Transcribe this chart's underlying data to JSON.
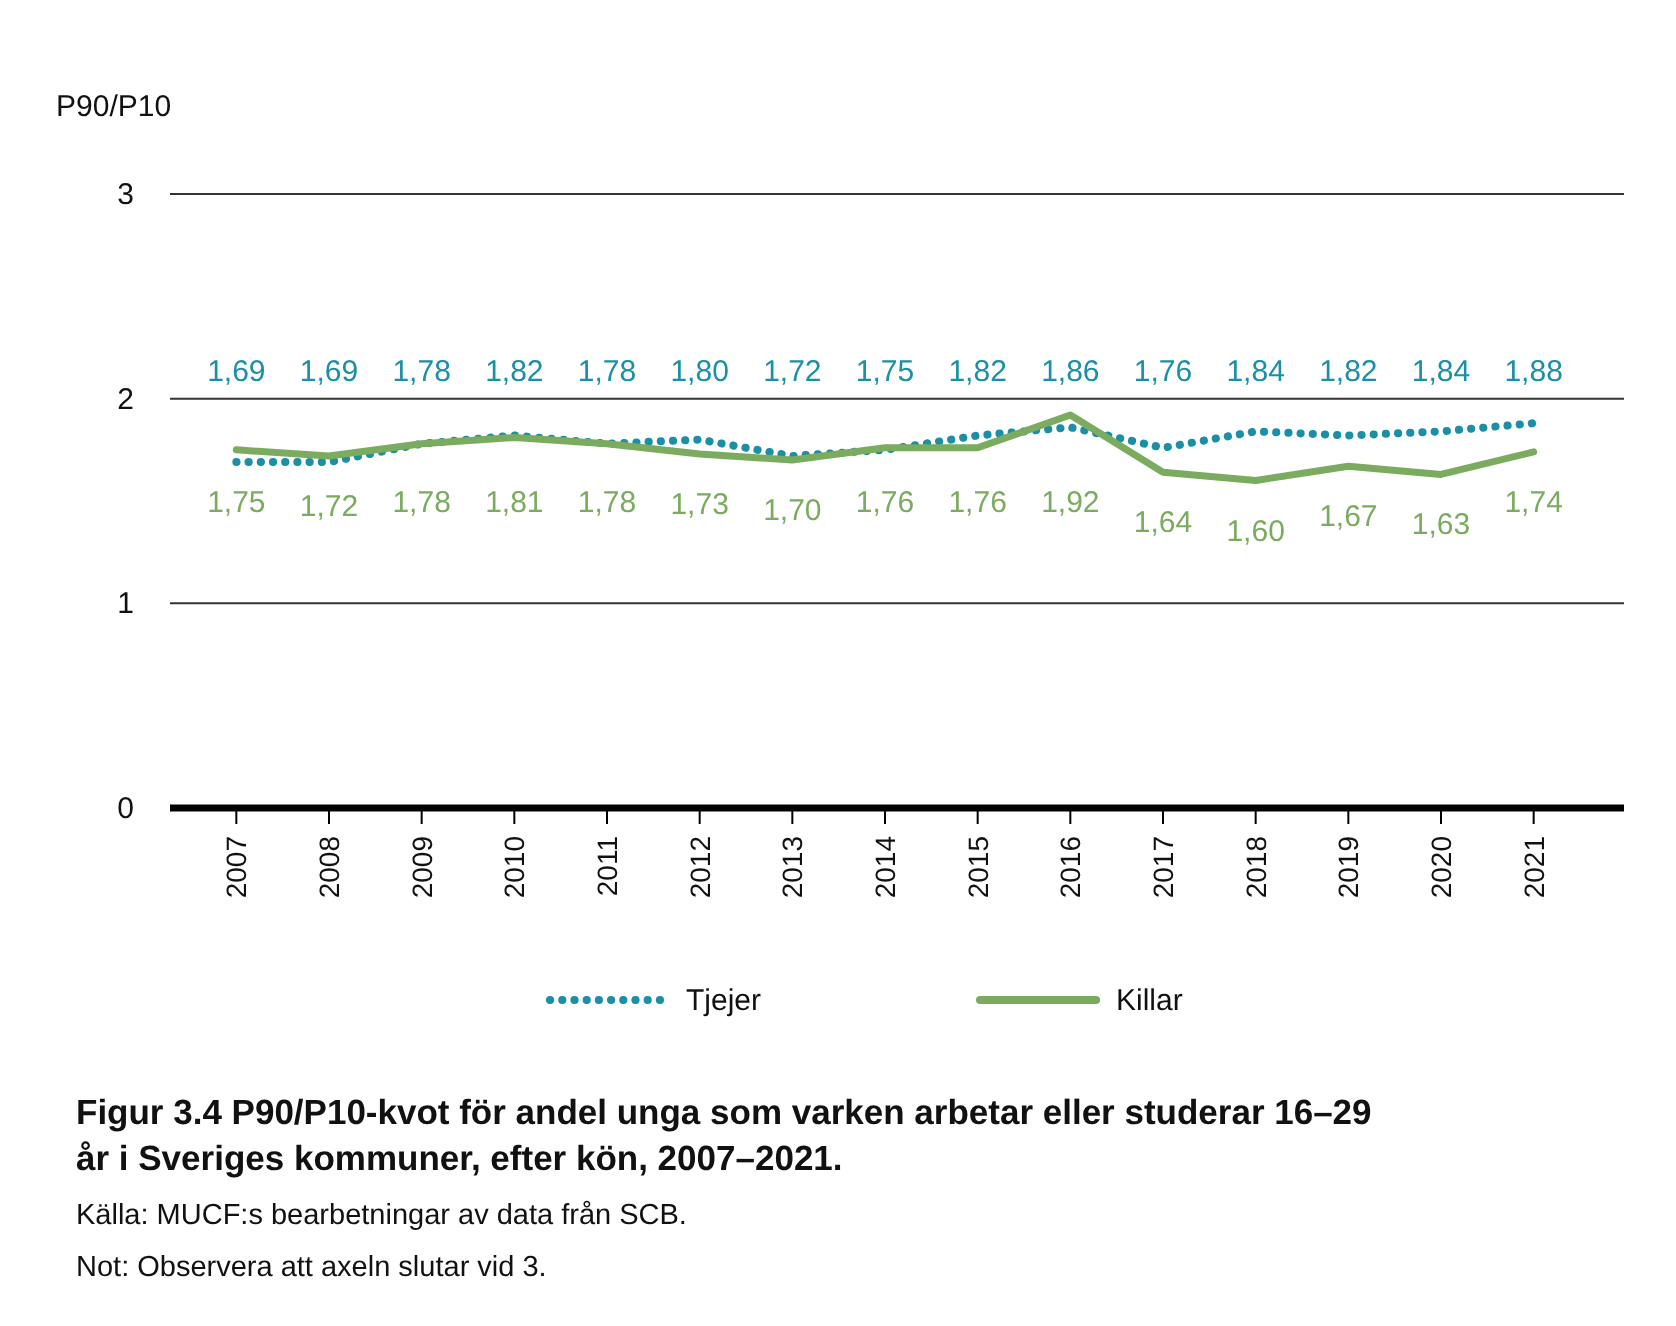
{
  "chart_data": {
    "type": "line",
    "title": "Figur 3.4 P90/P10-kvot för andel unga som varken arbetar eller studerar 16–29 år i Sveriges kommuner, efter kön, 2007–2021.",
    "ylabel": "P90/P10",
    "categories": [
      "2007",
      "2008",
      "2009",
      "2010",
      "2011",
      "2012",
      "2013",
      "2014",
      "2015",
      "2016",
      "2017",
      "2018",
      "2019",
      "2020",
      "2021"
    ],
    "series": [
      {
        "name": "Tjejer",
        "color": "#1a8fa6",
        "line_style": "dotted",
        "values": [
          1.69,
          1.69,
          1.78,
          1.82,
          1.78,
          1.8,
          1.72,
          1.75,
          1.82,
          1.86,
          1.76,
          1.84,
          1.82,
          1.84,
          1.88
        ],
        "value_labels": [
          "1,69",
          "1,69",
          "1,78",
          "1,82",
          "1,78",
          "1,80",
          "1,72",
          "1,75",
          "1,82",
          "1,86",
          "1,76",
          "1,84",
          "1,82",
          "1,84",
          "1,88"
        ]
      },
      {
        "name": "Killar",
        "color": "#7aab5e",
        "line_style": "solid",
        "values": [
          1.75,
          1.72,
          1.78,
          1.81,
          1.78,
          1.73,
          1.7,
          1.76,
          1.76,
          1.92,
          1.64,
          1.6,
          1.67,
          1.63,
          1.74
        ],
        "value_labels": [
          "1,75",
          "1,72",
          "1,78",
          "1,81",
          "1,78",
          "1,73",
          "1,70",
          "1,76",
          "1,76",
          "1,92",
          "1,64",
          "1,60",
          "1,67",
          "1,63",
          "1,74"
        ]
      }
    ],
    "ylim": [
      0,
      3
    ],
    "yticks": [
      0,
      1,
      2,
      3
    ],
    "grid": "y",
    "legend": "bottom",
    "marker": "none",
    "annotations": [
      "Källa: MUCF:s bearbetningar av data från SCB.",
      "Not: Observera att axeln slutar vid 3."
    ]
  }
}
